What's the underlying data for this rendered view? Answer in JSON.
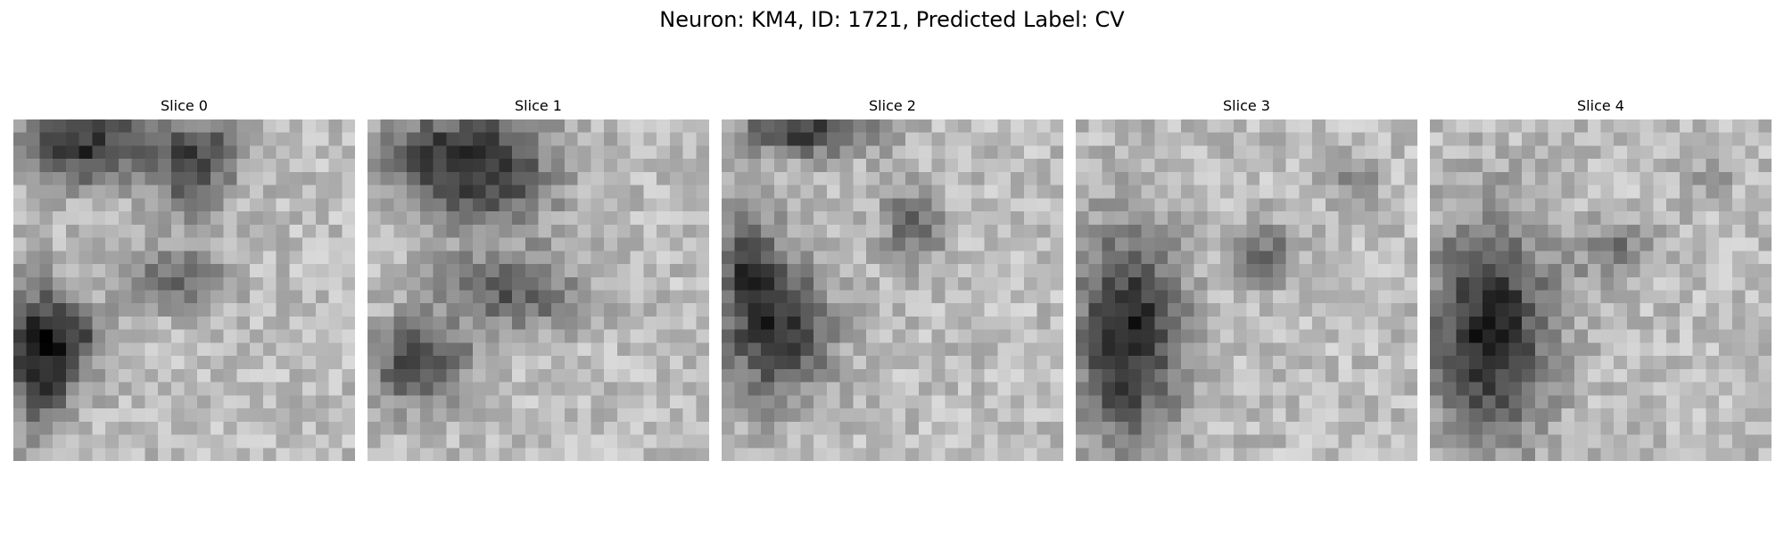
{
  "figure": {
    "title": "Neuron: KM4, ID: 1721, Predicted Label: CV",
    "colormap": "gray",
    "grid_size": [
      26,
      26
    ],
    "panels": [
      {
        "title": "Slice 0"
      },
      {
        "title": "Slice 1"
      },
      {
        "title": "Slice 2"
      },
      {
        "title": "Slice 3"
      },
      {
        "title": "Slice 4"
      }
    ]
  }
}
